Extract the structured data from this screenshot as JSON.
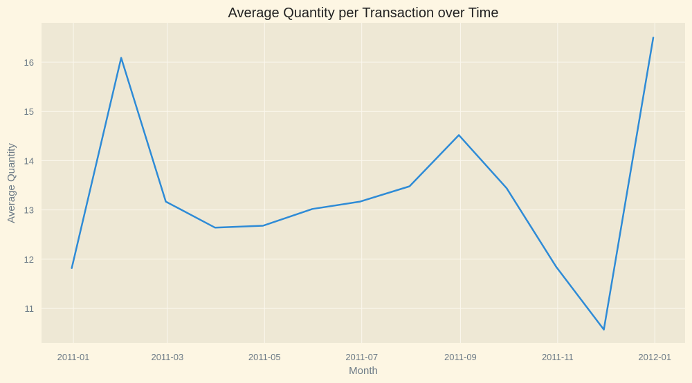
{
  "colors": {
    "figure_background": "#fdf6e3",
    "plot_background": "#eee8d5",
    "line": "#2e8bd6",
    "gridline": "#fbf7ee",
    "text": "#6c7a86"
  },
  "chart_data": {
    "type": "line",
    "title": "Average Quantity per Transaction over Time",
    "xlabel": "Month",
    "ylabel": "Average Quantity",
    "grid": true,
    "x_ticks": [
      "2011-01",
      "2011-03",
      "2011-05",
      "2011-07",
      "2011-09",
      "2011-11",
      "2012-01"
    ],
    "y_ticks": [
      11,
      12,
      13,
      14,
      15,
      16
    ],
    "x": [
      "2010-12-31",
      "2011-01-31",
      "2011-02-28",
      "2011-03-31",
      "2011-04-30",
      "2011-05-31",
      "2011-06-30",
      "2011-07-31",
      "2011-08-31",
      "2011-09-30",
      "2011-10-31",
      "2011-11-30",
      "2011-12-31"
    ],
    "series": [
      {
        "values": [
          11.82,
          16.09,
          13.17,
          12.64,
          12.68,
          13.02,
          13.17,
          13.48,
          14.52,
          13.44,
          11.85,
          10.57,
          16.5
        ]
      }
    ],
    "xlim": [
      "2010-12-12",
      "2012-01-20"
    ],
    "ylim": [
      10.3,
      16.8
    ]
  }
}
